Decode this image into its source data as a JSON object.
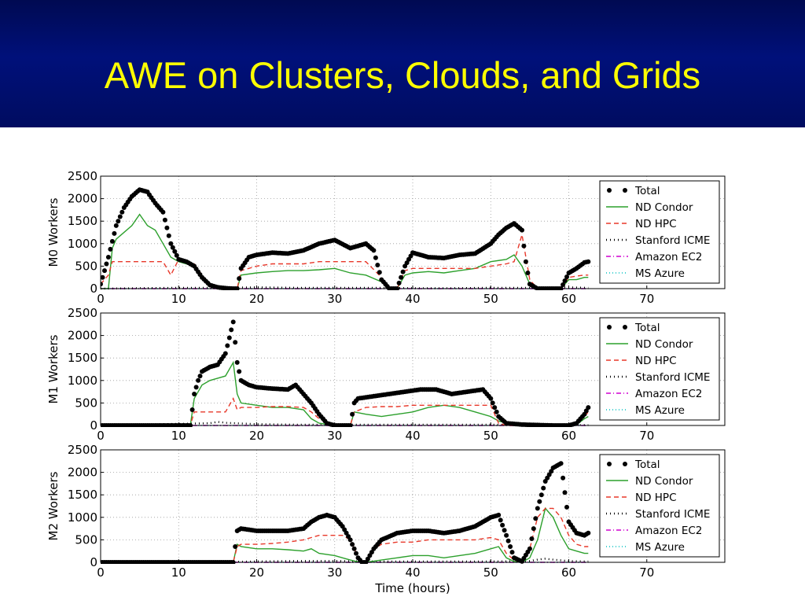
{
  "slide": {
    "title": "AWE on Clusters, Clouds, and Grids"
  },
  "colors": {
    "header_bg": "#00107a",
    "title": "#ffff00",
    "total": "#000000",
    "nd_condor": "#2ca02c",
    "nd_hpc": "#e8382a",
    "stanford_icme": "#000000",
    "amazon_ec2": "#d000d0",
    "ms_azure": "#00c0c0"
  },
  "chart_data": [
    {
      "type": "line",
      "ylabel": "M0 Workers",
      "xlabel": "",
      "xlim": [
        0,
        80
      ],
      "ylim": [
        0,
        2500
      ],
      "xticks": [
        "0",
        "10",
        "20",
        "30",
        "40",
        "50",
        "60",
        "70"
      ],
      "yticks": [
        "0",
        "500",
        "1000",
        "1500",
        "2000",
        "2500"
      ],
      "grid": true,
      "legend_position": "top-right",
      "series": [
        {
          "name": "Total",
          "style": "dots",
          "x": [
            0,
            1,
            2,
            3,
            4,
            5,
            6,
            7,
            8,
            9,
            10,
            11,
            12,
            13,
            14,
            15,
            16,
            17,
            17.5,
            18,
            19,
            20,
            22,
            24,
            26,
            28,
            30,
            32,
            34,
            35,
            36,
            37,
            38,
            39,
            40,
            42,
            44,
            46,
            48,
            50,
            51,
            52,
            53,
            54,
            54.5,
            55,
            56,
            57,
            58,
            59,
            60,
            61,
            62,
            62.5
          ],
          "y": [
            100,
            700,
            1400,
            1800,
            2050,
            2200,
            2150,
            1900,
            1700,
            1000,
            650,
            600,
            500,
            250,
            80,
            30,
            10,
            0,
            0,
            450,
            700,
            750,
            800,
            780,
            850,
            1000,
            1080,
            900,
            1000,
            850,
            200,
            0,
            0,
            500,
            800,
            700,
            680,
            750,
            780,
            1000,
            1200,
            1350,
            1450,
            1300,
            600,
            100,
            0,
            0,
            0,
            0,
            350,
            450,
            580,
            600
          ]
        },
        {
          "name": "ND Condor",
          "style": "solid",
          "x": [
            0,
            1,
            1.5,
            2,
            4,
            5,
            6,
            7,
            8,
            9,
            10,
            12,
            13,
            14,
            16,
            17,
            17.5,
            18,
            20,
            22,
            24,
            26,
            28,
            30,
            32,
            34,
            36,
            37,
            38,
            39,
            40,
            42,
            44,
            46,
            48,
            50,
            52,
            53,
            54,
            55,
            56,
            59,
            60,
            61,
            62,
            62.5
          ],
          "y": [
            0,
            0,
            900,
            1100,
            1400,
            1650,
            1400,
            1300,
            1000,
            700,
            600,
            500,
            250,
            50,
            10,
            0,
            0,
            300,
            350,
            380,
            400,
            400,
            420,
            450,
            350,
            300,
            150,
            0,
            0,
            300,
            350,
            380,
            350,
            400,
            450,
            600,
            650,
            750,
            500,
            100,
            0,
            0,
            200,
            200,
            250,
            250
          ]
        },
        {
          "name": "ND HPC",
          "style": "dashed",
          "x": [
            0,
            1,
            1.5,
            8,
            9,
            10,
            12,
            13,
            14,
            16,
            17,
            17.5,
            18,
            20,
            22,
            24,
            26,
            28,
            30,
            32,
            34,
            36,
            37,
            38,
            39,
            40,
            42,
            44,
            46,
            48,
            50,
            52,
            53,
            54,
            55,
            56,
            59,
            60,
            61,
            62,
            62.5
          ],
          "y": [
            100,
            300,
            600,
            600,
            300,
            650,
            550,
            300,
            100,
            20,
            0,
            0,
            400,
            500,
            550,
            550,
            550,
            600,
            600,
            600,
            600,
            250,
            0,
            0,
            400,
            450,
            450,
            450,
            450,
            450,
            500,
            550,
            600,
            1200,
            200,
            0,
            0,
            250,
            280,
            300,
            300
          ]
        },
        {
          "name": "Stanford ICME",
          "style": "dotted",
          "x": [
            0,
            5,
            10,
            15,
            20,
            25,
            30,
            35,
            40,
            45,
            50,
            55,
            60,
            62.5
          ],
          "y": [
            0,
            10,
            20,
            20,
            30,
            20,
            20,
            20,
            10,
            10,
            20,
            20,
            30,
            20
          ]
        },
        {
          "name": "Amazon EC2",
          "style": "dashdot",
          "x": [
            0,
            62.5
          ],
          "y": [
            0,
            0
          ]
        },
        {
          "name": "MS Azure",
          "style": "dotted",
          "x": [
            0,
            62.5
          ],
          "y": [
            0,
            0
          ]
        }
      ]
    },
    {
      "type": "line",
      "ylabel": "M1 Workers",
      "xlabel": "",
      "xlim": [
        0,
        80
      ],
      "ylim": [
        0,
        2500
      ],
      "xticks": [
        "0",
        "10",
        "20",
        "30",
        "40",
        "50",
        "60",
        "70"
      ],
      "yticks": [
        "0",
        "500",
        "1000",
        "1500",
        "2000",
        "2500"
      ],
      "grid": true,
      "legend_position": "top-right",
      "series": [
        {
          "name": "Total",
          "style": "dots",
          "x": [
            0,
            11.5,
            12,
            12.5,
            13,
            14,
            15,
            16,
            16.5,
            17,
            17.5,
            18,
            19,
            20,
            22,
            24,
            25,
            26,
            27,
            28,
            29,
            30,
            31,
            32,
            32.5,
            33,
            35,
            37,
            39,
            41,
            43,
            45,
            47,
            49,
            50,
            51,
            52,
            54,
            56,
            58,
            60,
            61,
            62,
            62.5
          ],
          "y": [
            0,
            0,
            700,
            1000,
            1200,
            1300,
            1350,
            1600,
            1950,
            2300,
            1400,
            1000,
            900,
            850,
            820,
            800,
            900,
            700,
            500,
            250,
            50,
            0,
            0,
            0,
            500,
            600,
            650,
            700,
            750,
            800,
            800,
            700,
            750,
            800,
            600,
            200,
            50,
            20,
            10,
            0,
            0,
            50,
            250,
            400
          ]
        },
        {
          "name": "ND Condor",
          "style": "solid",
          "x": [
            0,
            11.5,
            12,
            13,
            14,
            15,
            16,
            17,
            17.5,
            18,
            20,
            22,
            24,
            26,
            27,
            28,
            30,
            32,
            32.5,
            34,
            36,
            38,
            40,
            42,
            44,
            46,
            48,
            50,
            51,
            52,
            54,
            60,
            61,
            62,
            62.5
          ],
          "y": [
            0,
            0,
            600,
            900,
            1000,
            1050,
            1100,
            1400,
            700,
            500,
            450,
            400,
            400,
            350,
            150,
            50,
            0,
            0,
            300,
            250,
            200,
            250,
            300,
            400,
            450,
            400,
            300,
            200,
            100,
            50,
            20,
            0,
            20,
            150,
            200
          ]
        },
        {
          "name": "ND HPC",
          "style": "dashed",
          "x": [
            0,
            11.5,
            12,
            14,
            16,
            17,
            17.5,
            18,
            20,
            22,
            24,
            26,
            27,
            28,
            30,
            32,
            32.5,
            34,
            36,
            38,
            40,
            42,
            44,
            46,
            48,
            50,
            51,
            52,
            60,
            61,
            62,
            62.5
          ],
          "y": [
            0,
            0,
            300,
            300,
            300,
            600,
            350,
            400,
            400,
            420,
            420,
            400,
            300,
            150,
            0,
            0,
            300,
            400,
            420,
            420,
            450,
            450,
            450,
            450,
            450,
            450,
            50,
            0,
            0,
            30,
            200,
            300
          ]
        },
        {
          "name": "Stanford ICME",
          "style": "dotted",
          "x": [
            0,
            14,
            15,
            16,
            20,
            25,
            30,
            35,
            40,
            45,
            50,
            55,
            60,
            62.5
          ],
          "y": [
            0,
            50,
            80,
            60,
            30,
            20,
            20,
            20,
            20,
            20,
            20,
            10,
            10,
            10
          ]
        },
        {
          "name": "Amazon EC2",
          "style": "dashdot",
          "x": [
            0,
            62.5
          ],
          "y": [
            0,
            0
          ]
        },
        {
          "name": "MS Azure",
          "style": "dotted",
          "x": [
            0,
            62.5
          ],
          "y": [
            0,
            0
          ]
        }
      ]
    },
    {
      "type": "line",
      "ylabel": "M2 Workers",
      "xlabel": "Time (hours)",
      "xlim": [
        0,
        80
      ],
      "ylim": [
        0,
        2500
      ],
      "xticks": [
        "0",
        "10",
        "20",
        "30",
        "40",
        "50",
        "60",
        "70"
      ],
      "yticks": [
        "0",
        "500",
        "1000",
        "1500",
        "2000",
        "2500"
      ],
      "grid": true,
      "legend_position": "top-right",
      "series": [
        {
          "name": "Total",
          "style": "dots",
          "x": [
            0,
            17,
            17.5,
            18,
            20,
            22,
            24,
            26,
            27,
            28,
            29,
            30,
            31,
            32,
            33,
            33.5,
            34,
            35,
            36,
            38,
            40,
            42,
            44,
            46,
            48,
            50,
            51,
            52,
            53,
            54,
            55,
            56,
            57,
            58,
            59,
            60,
            61,
            62,
            62.5
          ],
          "y": [
            0,
            0,
            700,
            750,
            700,
            700,
            700,
            750,
            900,
            1000,
            1050,
            1000,
            800,
            500,
            100,
            0,
            0,
            300,
            500,
            650,
            700,
            700,
            650,
            700,
            800,
            1000,
            1050,
            600,
            100,
            20,
            300,
            1200,
            1800,
            2100,
            2200,
            900,
            650,
            600,
            650
          ]
        },
        {
          "name": "ND Condor",
          "style": "solid",
          "x": [
            0,
            17,
            17.5,
            18,
            20,
            22,
            24,
            26,
            27,
            28,
            30,
            31,
            32,
            33,
            33.5,
            34,
            36,
            38,
            40,
            42,
            44,
            46,
            48,
            50,
            51,
            52,
            53,
            54,
            55,
            56,
            57,
            58,
            59,
            60,
            61,
            62,
            62.5
          ],
          "y": [
            0,
            0,
            400,
            350,
            300,
            300,
            280,
            250,
            300,
            200,
            150,
            100,
            50,
            10,
            0,
            0,
            50,
            100,
            150,
            150,
            100,
            150,
            200,
            300,
            350,
            100,
            20,
            0,
            100,
            500,
            1200,
            1000,
            600,
            300,
            250,
            200,
            200
          ]
        },
        {
          "name": "ND HPC",
          "style": "dashed",
          "x": [
            0,
            17,
            17.5,
            18,
            20,
            22,
            24,
            26,
            27,
            28,
            30,
            31,
            32,
            33,
            33.5,
            34,
            35,
            36,
            38,
            40,
            42,
            44,
            46,
            48,
            50,
            51,
            52,
            53,
            54,
            55,
            56,
            57,
            58,
            59,
            60,
            61,
            62,
            62.5
          ],
          "y": [
            0,
            0,
            350,
            400,
            400,
            420,
            450,
            500,
            550,
            600,
            600,
            600,
            500,
            100,
            0,
            0,
            300,
            400,
            450,
            450,
            500,
            500,
            500,
            500,
            550,
            500,
            200,
            50,
            0,
            300,
            1000,
            1200,
            1200,
            1000,
            600,
            400,
            350,
            350
          ]
        },
        {
          "name": "Stanford ICME",
          "style": "dotted",
          "x": [
            0,
            17,
            20,
            25,
            30,
            35,
            40,
            45,
            50,
            55,
            56,
            57,
            58,
            60,
            62.5
          ],
          "y": [
            0,
            10,
            20,
            30,
            30,
            20,
            20,
            20,
            20,
            30,
            60,
            80,
            60,
            30,
            20
          ]
        },
        {
          "name": "Amazon EC2",
          "style": "dashdot",
          "x": [
            0,
            62.5
          ],
          "y": [
            0,
            0
          ]
        },
        {
          "name": "MS Azure",
          "style": "dotted",
          "x": [
            0,
            62.5
          ],
          "y": [
            0,
            0
          ]
        }
      ]
    }
  ]
}
